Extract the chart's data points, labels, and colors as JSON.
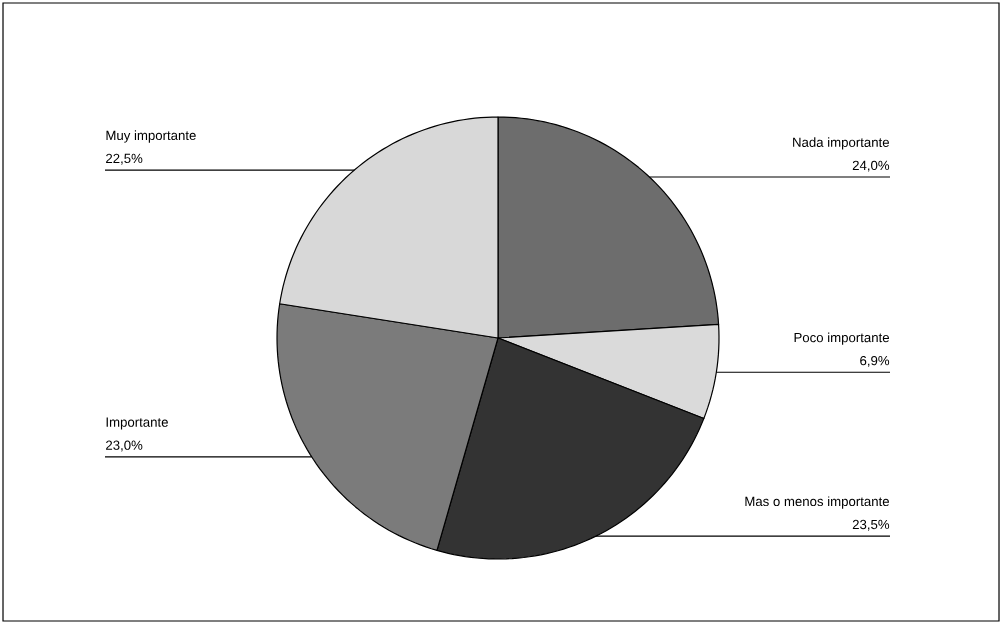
{
  "chart_data": {
    "type": "pie",
    "categories": [
      "Nada importante",
      "Poco importante",
      "Mas o menos importante",
      "Importante",
      "Muy importante"
    ],
    "values": [
      24.0,
      6.9,
      23.5,
      23.0,
      22.5
    ],
    "value_labels": [
      "24,0%",
      "6,9%",
      "23,5%",
      "23,0%",
      "22,5%"
    ],
    "colors": [
      "#6d6d6d",
      "#dadada",
      "#333333",
      "#7b7b7b",
      "#d8d8d8"
    ]
  }
}
